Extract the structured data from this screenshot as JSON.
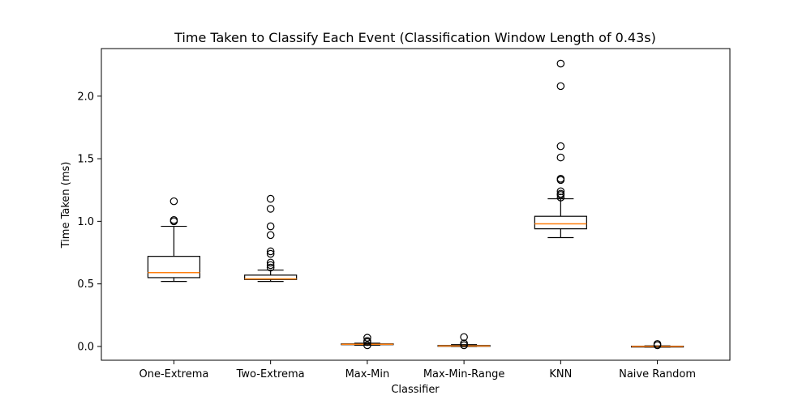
{
  "chart_data": {
    "type": "box",
    "title": "Time Taken to Classify Each Event (Classification Window Length of 0.43s)",
    "xlabel": "Classifier",
    "ylabel": "Time Taken (ms)",
    "ylim": [
      -0.11,
      2.38
    ],
    "yticks": [
      {
        "value": 0.0,
        "label": "0.0"
      },
      {
        "value": 0.5,
        "label": "0.5"
      },
      {
        "value": 1.0,
        "label": "1.0"
      },
      {
        "value": 1.5,
        "label": "1.5"
      },
      {
        "value": 2.0,
        "label": "2.0"
      }
    ],
    "grid": false,
    "colors": {
      "box": "#000000",
      "median": "#ff7f0e",
      "flier": "#000000",
      "background": "#ffffff"
    },
    "categories": [
      "One-Extrema",
      "Two-Extrema",
      "Max-Min",
      "Max-Min-Range",
      "KNN",
      "Naive Random"
    ],
    "boxes": [
      {
        "label": "One-Extrema",
        "whisker_low": 0.52,
        "q1": 0.55,
        "median": 0.59,
        "q3": 0.72,
        "whisker_high": 0.96,
        "fliers": [
          1.0,
          1.01,
          1.16
        ]
      },
      {
        "label": "Two-Extrema",
        "whisker_low": 0.52,
        "q1": 0.535,
        "median": 0.54,
        "q3": 0.57,
        "whisker_high": 0.61,
        "fliers": [
          0.63,
          0.65,
          0.67,
          0.74,
          0.76,
          0.89,
          0.96,
          1.1,
          1.18
        ]
      },
      {
        "label": "Max-Min",
        "whisker_low": 0.01,
        "q1": 0.015,
        "median": 0.018,
        "q3": 0.021,
        "whisker_high": 0.026,
        "fliers": [
          0.01,
          0.035,
          0.045,
          0.07
        ]
      },
      {
        "label": "Max-Min-Range",
        "whisker_low": 0.0,
        "q1": 0.002,
        "median": 0.004,
        "q3": 0.008,
        "whisker_high": 0.015,
        "fliers": [
          0.01,
          0.025,
          0.075
        ]
      },
      {
        "label": "KNN",
        "whisker_low": 0.87,
        "q1": 0.94,
        "median": 0.98,
        "q3": 1.04,
        "whisker_high": 1.18,
        "fliers": [
          1.19,
          1.21,
          1.22,
          1.24,
          1.33,
          1.34,
          1.51,
          1.6,
          2.08,
          2.26
        ]
      },
      {
        "label": "Naive Random",
        "whisker_low": -0.005,
        "q1": -0.003,
        "median": 0.0,
        "q3": 0.002,
        "whisker_high": 0.005,
        "fliers": [
          0.01,
          0.02
        ]
      }
    ]
  }
}
